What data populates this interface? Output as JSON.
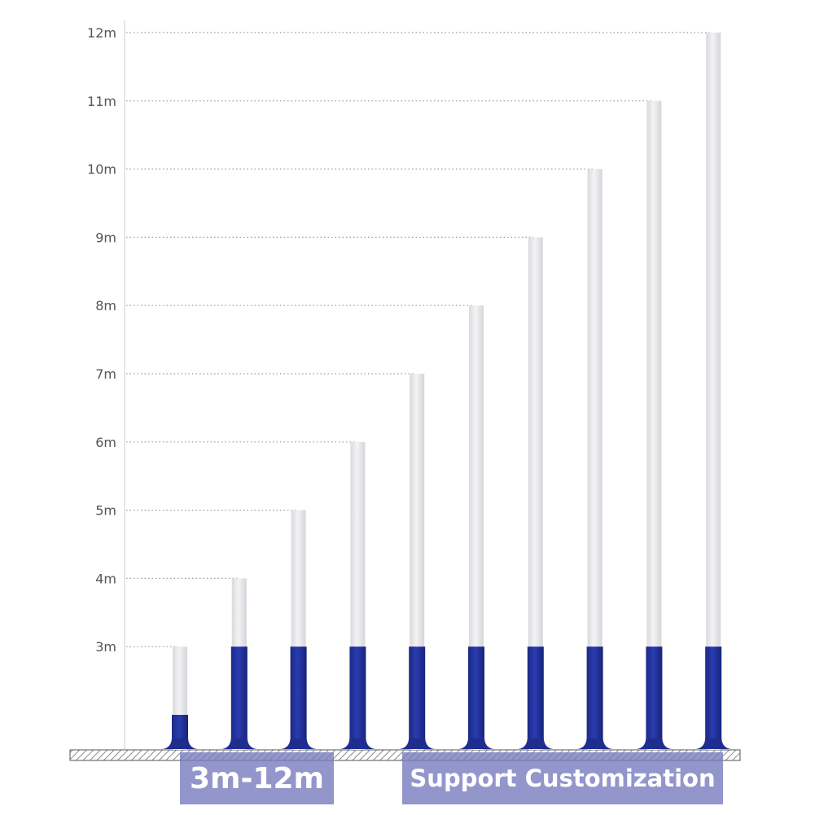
{
  "chart_data": {
    "type": "bar",
    "title": "",
    "xlabel": "",
    "ylabel": "",
    "y_tick_labels": [
      "3m",
      "4m",
      "5m",
      "6m",
      "7m",
      "8m",
      "9m",
      "10m",
      "11m",
      "12m"
    ],
    "ylim": [
      1.5,
      12
    ],
    "grid": "dotted reference lines at each pole top",
    "series": [
      {
        "values": [
          3,
          4,
          5,
          6,
          7,
          8,
          9,
          10,
          11,
          12
        ]
      }
    ],
    "base_heights_m": [
      2.0,
      3.0,
      3.0,
      3.0,
      3.0,
      3.0,
      3.0,
      3.0,
      3.0,
      3.0
    ],
    "colors": {
      "pole": "#e8e9ec",
      "base": "#223399",
      "grid": "#999999",
      "axis": "#cccccc"
    }
  },
  "badges": {
    "range": "3m-12m",
    "customization": "Support Customization"
  }
}
